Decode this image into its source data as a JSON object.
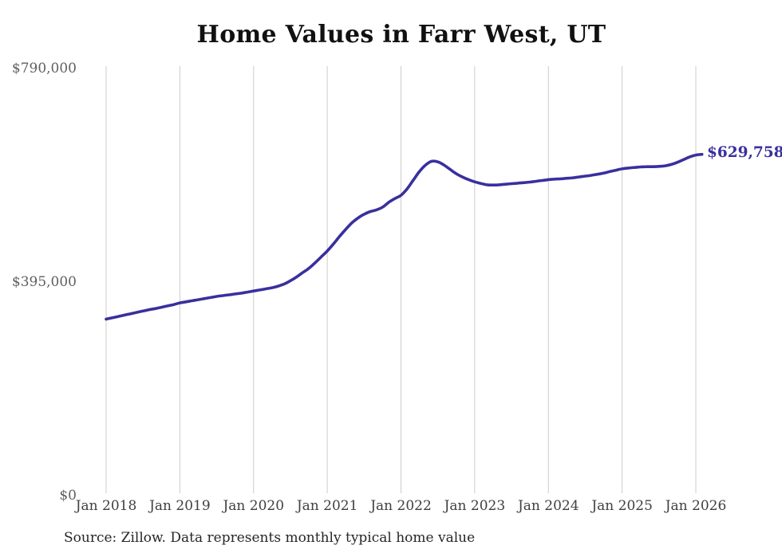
{
  "page": {
    "title": "Home Values in Farr West, UT",
    "end_label": "$629,758",
    "source_note": "Source: Zillow. Data represents monthly typical home value"
  },
  "colors": {
    "background": "#ffffff",
    "line": "#38309e",
    "grid": "#cccccc",
    "title_text": "#111111",
    "y_tick_text": "#5f5f5f",
    "x_tick_text": "#3f3f3f",
    "end_label_text": "#38309e",
    "source_text": "#262626"
  },
  "chart_data": {
    "type": "line",
    "title": "Home Values in Farr West, UT",
    "xlabel": "",
    "ylabel": "",
    "ylim": [
      0,
      790000
    ],
    "grid": "vertical-only",
    "legend": "none",
    "x_tick_labels": [
      "Jan 2018",
      "Jan 2019",
      "Jan 2020",
      "Jan 2021",
      "Jan 2022",
      "Jan 2023",
      "Jan 2024",
      "Jan 2025",
      "Jan 2026"
    ],
    "y_ticks": [
      {
        "label": "$790,000",
        "value": 790000
      },
      {
        "label": "$395,000",
        "value": 395000
      },
      {
        "label": "$0",
        "value": 0
      }
    ],
    "annotation": {
      "text": "$629,758",
      "value": 629758,
      "position": "line-end"
    },
    "series": [
      {
        "name": "Typical home value",
        "start": "2018-01",
        "interval": "monthly",
        "values": [
          325000,
          327500,
          330000,
          332500,
          335000,
          337500,
          340000,
          342500,
          344500,
          347000,
          349500,
          352000,
          355000,
          357000,
          359000,
          361000,
          363000,
          365000,
          367000,
          368500,
          370000,
          371500,
          373000,
          375000,
          377000,
          379000,
          381000,
          383000,
          386000,
          390000,
          396000,
          403000,
          411000,
          419000,
          429000,
          440000,
          451000,
          464000,
          478000,
          491000,
          503000,
          512000,
          519000,
          524000,
          527000,
          532000,
          541000,
          548000,
          554000,
          566000,
          582000,
          598000,
          610000,
          617000,
          616000,
          610000,
          602000,
          594000,
          588000,
          583000,
          579000,
          576000,
          573500,
          573000,
          573500,
          574500,
          575500,
          576500,
          577500,
          578500,
          580000,
          581500,
          583000,
          584000,
          584500,
          585500,
          586500,
          588000,
          589500,
          591000,
          593000,
          595000,
          598000,
          600500,
          603000,
          604500,
          605500,
          606500,
          607000,
          607000,
          607500,
          608500,
          611000,
          615000,
          620000,
          625000,
          628500,
          629758
        ]
      }
    ]
  }
}
